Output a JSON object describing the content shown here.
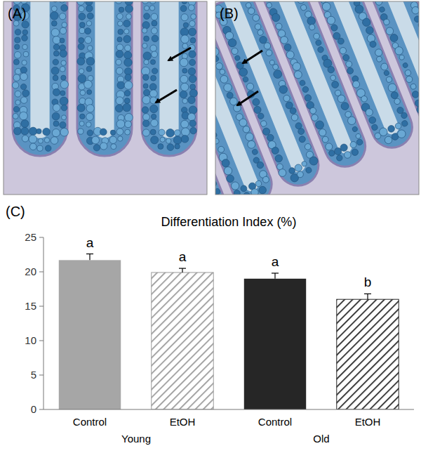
{
  "panel_labels": [
    "(A)",
    "(B)",
    "(C)"
  ],
  "chart_data": {
    "type": "bar",
    "title": "Differentiation Index (%)",
    "categories": [
      "Control",
      "EtOH",
      "Control",
      "EtOH"
    ],
    "groups": [
      "Young",
      "Old"
    ],
    "values": [
      21.7,
      19.9,
      19.0,
      16.0
    ],
    "errors": [
      0.9,
      0.6,
      0.8,
      0.8
    ],
    "annotations": [
      "a",
      "a",
      "a",
      "b"
    ],
    "colors": [
      "#a6a6a6",
      "#9a9a9a",
      "#262626",
      "#262626"
    ],
    "ylim": [
      0,
      25
    ],
    "yticks": [
      0,
      5,
      10,
      15,
      20,
      25
    ],
    "grid": false
  }
}
